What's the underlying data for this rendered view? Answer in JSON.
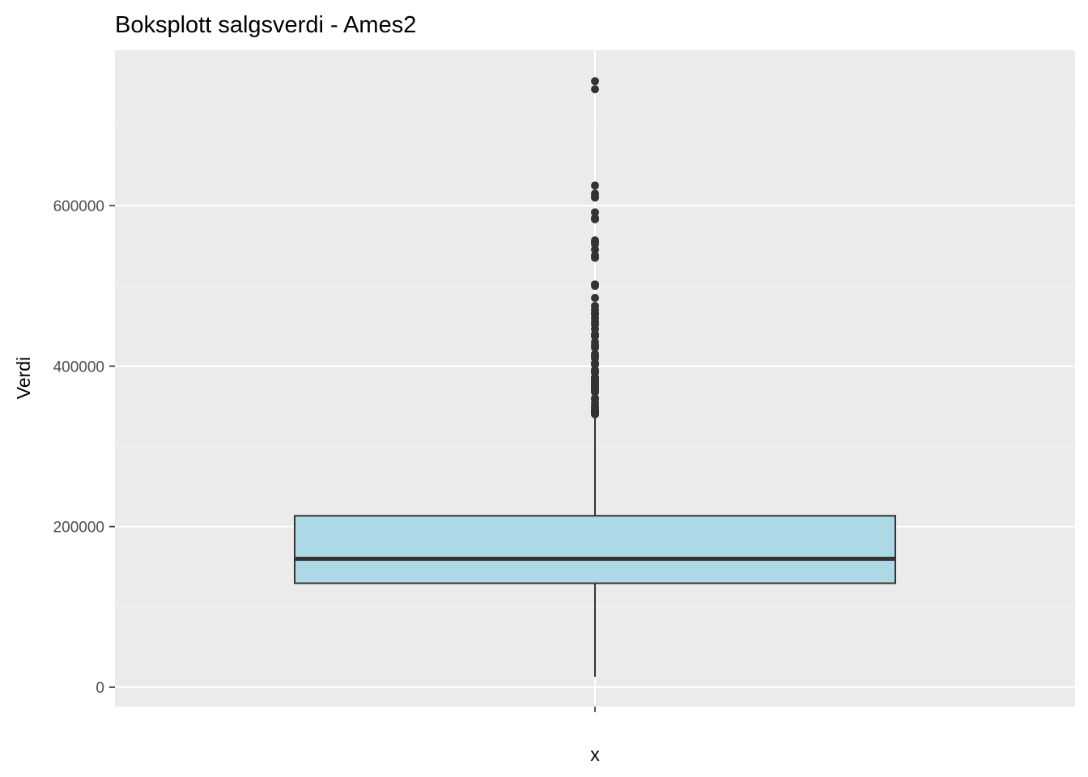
{
  "chart_data": {
    "type": "boxplot",
    "title": "Boksplott salgsverdi - Ames2",
    "xlabel": "x",
    "ylabel": "Verdi",
    "categories": [
      ""
    ],
    "ylim": [
      -25000,
      765000
    ],
    "y_ticks": [
      0,
      200000,
      400000,
      600000
    ],
    "y_tick_labels": [
      "0",
      "200000",
      "400000",
      "600000"
    ],
    "grid": true,
    "legend": "none",
    "box": {
      "whisker_low": 12789,
      "q1": 129500,
      "median": 160000,
      "q3": 213500,
      "whisker_high": 339750
    },
    "outliers": [
      755000,
      745000,
      625000,
      615000,
      611657,
      610000,
      591587,
      584500,
      582933,
      556581,
      555000,
      552000,
      545224,
      538000,
      535000,
      501837,
      500000,
      485000,
      475000,
      470000,
      466500,
      465000,
      460000,
      455000,
      451950,
      446261,
      440000,
      438780,
      437154,
      430000,
      426000,
      424870,
      423000,
      415298,
      412500,
      410000,
      404000,
      402861,
      402000,
      395000,
      394617,
      394432,
      392500,
      392000,
      386250,
      385000,
      384500,
      383970,
      381000,
      380000,
      378500,
      377500,
      377426,
      376162,
      375000,
      372500,
      372402,
      370967,
      370878,
      369900,
      367294,
      360000,
      359100,
      354000,
      350000,
      348000,
      345474,
      345000,
      343000,
      342643,
      341000,
      340000
    ]
  },
  "colors": {
    "panel_background": "#ebebeb",
    "grid_major": "#ffffff",
    "grid_minor": "#f5f5f5",
    "box_fill": "#add8e6",
    "box_line": "#333333",
    "outlier_fill": "#333333"
  }
}
